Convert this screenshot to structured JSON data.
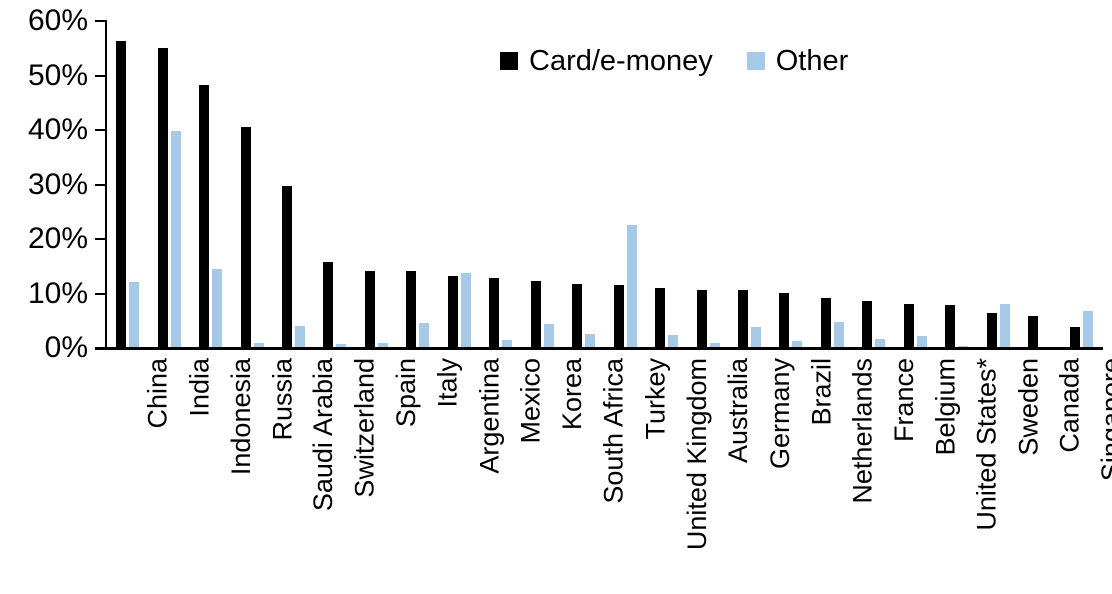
{
  "chart_data": {
    "type": "bar",
    "title": "",
    "xlabel": "",
    "ylabel": "",
    "ylim": [
      0,
      60
    ],
    "ytick_labels": [
      "0%",
      "10%",
      "20%",
      "30%",
      "40%",
      "50%",
      "60%"
    ],
    "grid": false,
    "legend_position": "top-center",
    "categories": [
      "China",
      "India",
      "Indonesia",
      "Russia",
      "Saudi Arabia",
      "Switzerland",
      "Spain",
      "Italy",
      "Argentina",
      "Mexico",
      "Korea",
      "South Africa",
      "Turkey",
      "United Kingdom",
      "Australia",
      "Germany",
      "Brazil",
      "Netherlands",
      "France",
      "Belgium",
      "United States*",
      "Sweden",
      "Canada",
      "Singapore"
    ],
    "series": [
      {
        "name": "Card/e-money",
        "color": "#000000",
        "values": [
          56.3,
          55.1,
          48.3,
          40.6,
          29.8,
          15.7,
          14.2,
          14.1,
          13.3,
          12.9,
          12.3,
          11.7,
          11.6,
          11.0,
          10.7,
          10.6,
          10.1,
          9.2,
          8.6,
          8.0,
          7.8,
          6.5,
          5.8,
          3.9
        ]
      },
      {
        "name": "Other",
        "color": "#A6C9E8",
        "values": [
          12.2,
          39.8,
          14.5,
          1.0,
          4.0,
          0.8,
          1.0,
          4.6,
          13.8,
          1.4,
          4.4,
          2.5,
          22.5,
          2.3,
          1.0,
          3.9,
          1.2,
          4.8,
          1.6,
          2.2,
          0.4,
          8.1,
          0.0,
          6.7
        ]
      }
    ]
  }
}
